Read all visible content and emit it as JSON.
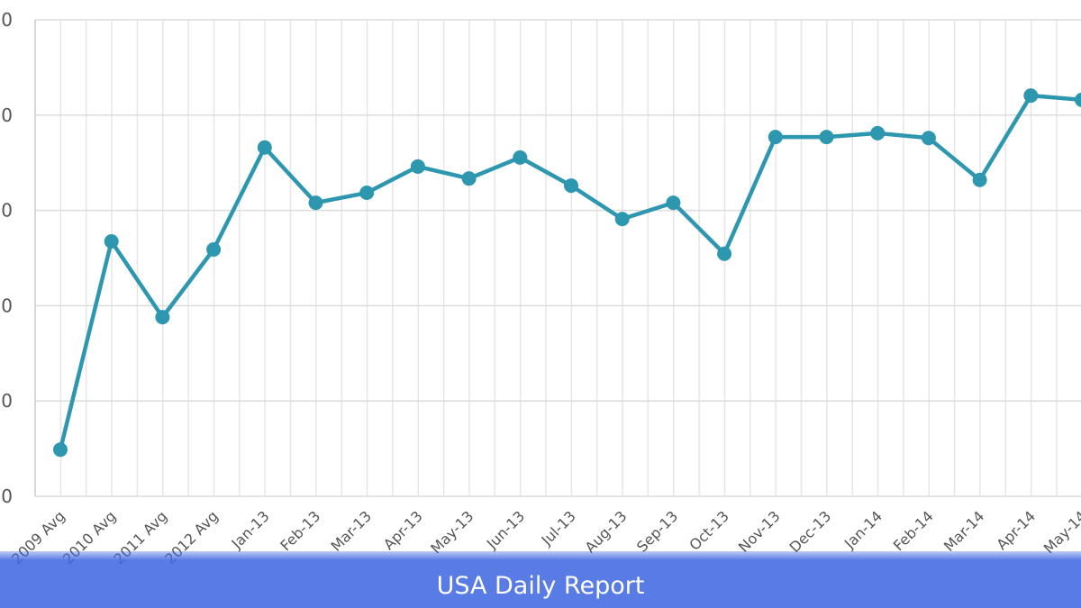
{
  "chart_data": {
    "type": "line",
    "title": "",
    "xlabel": "",
    "ylabel": "",
    "ylim": [
      0,
      100
    ],
    "y_tick_labels": [
      "0",
      "0",
      "0",
      "0",
      "0",
      "0"
    ],
    "grid": true,
    "line_color": "#2e97b0",
    "categories": [
      "2009 Avg",
      "2010 Avg",
      "2011 Avg",
      "2012 Avg",
      "Jan-13",
      "Feb-13",
      "Mar-13",
      "Apr-13",
      "May-13",
      "Jun-13",
      "Jul-13",
      "Aug-13",
      "Sep-13",
      "Oct-13",
      "Nov-13",
      "Dec-13",
      "Jan-14",
      "Feb-14",
      "Mar-14",
      "Apr-14",
      "May-14"
    ],
    "values": [
      9.8,
      53.5,
      37.6,
      51.8,
      73.2,
      61.6,
      63.7,
      69.2,
      66.7,
      71.1,
      65.2,
      58.2,
      61.6,
      50.9,
      75.4,
      75.4,
      76.2,
      75.2,
      66.4,
      84.1,
      83.2
    ]
  },
  "footer": {
    "title": "USA Daily Report",
    "color": "#4169e1"
  }
}
